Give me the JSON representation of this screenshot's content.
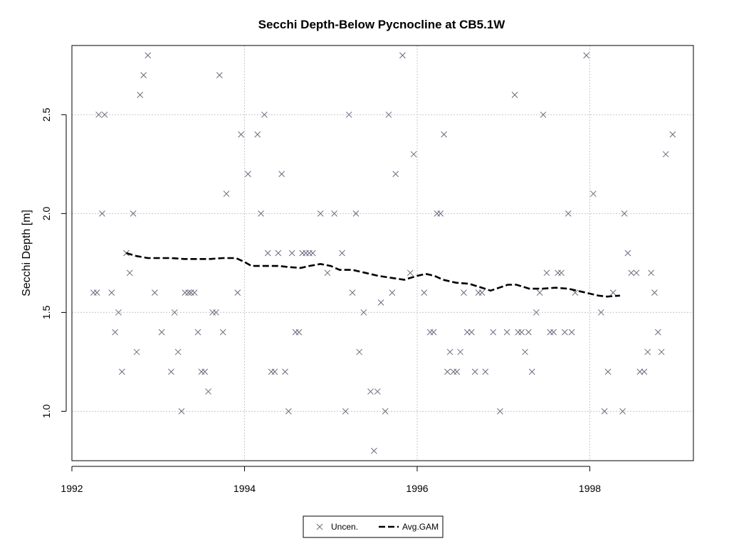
{
  "chart_data": {
    "type": "scatter",
    "title": "Secchi Depth-Below Pycnocline at CB5.1W",
    "xlabel": "",
    "ylabel": "Secchi Depth [m]",
    "xlim": [
      1992,
      1999.2
    ],
    "ylim": [
      0.75,
      2.85
    ],
    "x_ticks": [
      1992,
      1994,
      1996,
      1998
    ],
    "y_ticks": [
      1.0,
      1.5,
      2.0,
      2.5
    ],
    "y_tick_labels": [
      "1.0",
      "1.5",
      "2.0",
      "2.5"
    ],
    "grid": true,
    "legend_position": "bottom",
    "series": [
      {
        "name": "Uncen.",
        "kind": "points",
        "marker": "x",
        "color": "#6b6b80",
        "points": [
          [
            1992.25,
            1.6
          ],
          [
            1992.29,
            1.6
          ],
          [
            1992.31,
            2.5
          ],
          [
            1992.35,
            2.0
          ],
          [
            1992.38,
            2.5
          ],
          [
            1992.46,
            1.6
          ],
          [
            1992.5,
            1.4
          ],
          [
            1992.54,
            1.5
          ],
          [
            1992.58,
            1.2
          ],
          [
            1992.63,
            1.8
          ],
          [
            1992.67,
            1.7
          ],
          [
            1992.71,
            2.0
          ],
          [
            1992.75,
            1.3
          ],
          [
            1992.79,
            2.6
          ],
          [
            1992.83,
            2.7
          ],
          [
            1992.88,
            2.8
          ],
          [
            1992.96,
            1.6
          ],
          [
            1993.04,
            1.4
          ],
          [
            1993.15,
            1.2
          ],
          [
            1993.19,
            1.5
          ],
          [
            1993.23,
            1.3
          ],
          [
            1993.27,
            1.0
          ],
          [
            1993.31,
            1.6
          ],
          [
            1993.35,
            1.6
          ],
          [
            1993.38,
            1.6
          ],
          [
            1993.42,
            1.6
          ],
          [
            1993.46,
            1.4
          ],
          [
            1993.5,
            1.2
          ],
          [
            1993.54,
            1.2
          ],
          [
            1993.58,
            1.1
          ],
          [
            1993.63,
            1.5
          ],
          [
            1993.67,
            1.5
          ],
          [
            1993.71,
            2.7
          ],
          [
            1993.75,
            1.4
          ],
          [
            1993.79,
            2.1
          ],
          [
            1993.92,
            1.6
          ],
          [
            1993.96,
            2.4
          ],
          [
            1994.04,
            2.2
          ],
          [
            1994.15,
            2.4
          ],
          [
            1994.19,
            2.0
          ],
          [
            1994.23,
            2.5
          ],
          [
            1994.27,
            1.8
          ],
          [
            1994.31,
            1.2
          ],
          [
            1994.35,
            1.2
          ],
          [
            1994.39,
            1.8
          ],
          [
            1994.43,
            2.2
          ],
          [
            1994.47,
            1.2
          ],
          [
            1994.51,
            1.0
          ],
          [
            1994.55,
            1.8
          ],
          [
            1994.59,
            1.4
          ],
          [
            1994.63,
            1.4
          ],
          [
            1994.67,
            1.8
          ],
          [
            1994.71,
            1.8
          ],
          [
            1994.75,
            1.8
          ],
          [
            1994.79,
            1.8
          ],
          [
            1994.88,
            2.0
          ],
          [
            1994.96,
            1.7
          ],
          [
            1995.04,
            2.0
          ],
          [
            1995.13,
            1.8
          ],
          [
            1995.17,
            1.0
          ],
          [
            1995.21,
            2.5
          ],
          [
            1995.25,
            1.6
          ],
          [
            1995.29,
            2.0
          ],
          [
            1995.33,
            1.3
          ],
          [
            1995.38,
            1.5
          ],
          [
            1995.46,
            1.1
          ],
          [
            1995.5,
            0.8
          ],
          [
            1995.54,
            1.1
          ],
          [
            1995.58,
            1.55
          ],
          [
            1995.63,
            1.0
          ],
          [
            1995.67,
            2.5
          ],
          [
            1995.71,
            1.6
          ],
          [
            1995.75,
            2.2
          ],
          [
            1995.83,
            2.8
          ],
          [
            1995.92,
            1.7
          ],
          [
            1995.96,
            2.3
          ],
          [
            1996.08,
            1.6
          ],
          [
            1996.15,
            1.4
          ],
          [
            1996.19,
            1.4
          ],
          [
            1996.23,
            2.0
          ],
          [
            1996.27,
            2.0
          ],
          [
            1996.31,
            2.4
          ],
          [
            1996.35,
            1.2
          ],
          [
            1996.38,
            1.3
          ],
          [
            1996.42,
            1.2
          ],
          [
            1996.46,
            1.2
          ],
          [
            1996.5,
            1.3
          ],
          [
            1996.54,
            1.6
          ],
          [
            1996.58,
            1.4
          ],
          [
            1996.63,
            1.4
          ],
          [
            1996.67,
            1.2
          ],
          [
            1996.71,
            1.6
          ],
          [
            1996.75,
            1.6
          ],
          [
            1996.79,
            1.2
          ],
          [
            1996.88,
            1.4
          ],
          [
            1996.96,
            1.0
          ],
          [
            1997.04,
            1.4
          ],
          [
            1997.13,
            2.6
          ],
          [
            1997.17,
            1.4
          ],
          [
            1997.21,
            1.4
          ],
          [
            1997.25,
            1.3
          ],
          [
            1997.29,
            1.4
          ],
          [
            1997.33,
            1.2
          ],
          [
            1997.38,
            1.5
          ],
          [
            1997.42,
            1.6
          ],
          [
            1997.46,
            2.5
          ],
          [
            1997.5,
            1.7
          ],
          [
            1997.54,
            1.4
          ],
          [
            1997.58,
            1.4
          ],
          [
            1997.63,
            1.7
          ],
          [
            1997.67,
            1.7
          ],
          [
            1997.71,
            1.4
          ],
          [
            1997.75,
            2.0
          ],
          [
            1997.79,
            1.4
          ],
          [
            1997.83,
            1.6
          ],
          [
            1997.96,
            2.8
          ],
          [
            1998.04,
            2.1
          ],
          [
            1998.13,
            1.5
          ],
          [
            1998.17,
            1.0
          ],
          [
            1998.21,
            1.2
          ],
          [
            1998.27,
            1.6
          ],
          [
            1998.38,
            1.0
          ],
          [
            1998.4,
            2.0
          ],
          [
            1998.44,
            1.8
          ],
          [
            1998.48,
            1.7
          ],
          [
            1998.54,
            1.7
          ],
          [
            1998.58,
            1.2
          ],
          [
            1998.63,
            1.2
          ],
          [
            1998.67,
            1.3
          ],
          [
            1998.71,
            1.7
          ],
          [
            1998.75,
            1.6
          ],
          [
            1998.79,
            1.4
          ],
          [
            1998.83,
            1.3
          ],
          [
            1998.88,
            2.3
          ],
          [
            1998.96,
            2.4
          ]
        ]
      },
      {
        "name": "Avg.GAM",
        "kind": "line",
        "line_style": "dashed",
        "color": "#000000",
        "points": [
          [
            1992.63,
            1.8
          ],
          [
            1992.75,
            1.785
          ],
          [
            1992.88,
            1.775
          ],
          [
            1993.0,
            1.775
          ],
          [
            1993.15,
            1.775
          ],
          [
            1993.3,
            1.77
          ],
          [
            1993.45,
            1.77
          ],
          [
            1993.6,
            1.77
          ],
          [
            1993.75,
            1.775
          ],
          [
            1993.9,
            1.775
          ],
          [
            1994.0,
            1.755
          ],
          [
            1994.08,
            1.735
          ],
          [
            1994.25,
            1.735
          ],
          [
            1994.4,
            1.735
          ],
          [
            1994.5,
            1.73
          ],
          [
            1994.65,
            1.725
          ],
          [
            1994.75,
            1.735
          ],
          [
            1994.88,
            1.745
          ],
          [
            1995.0,
            1.735
          ],
          [
            1995.1,
            1.715
          ],
          [
            1995.25,
            1.715
          ],
          [
            1995.4,
            1.7
          ],
          [
            1995.55,
            1.685
          ],
          [
            1995.7,
            1.675
          ],
          [
            1995.85,
            1.665
          ],
          [
            1996.0,
            1.685
          ],
          [
            1996.1,
            1.695
          ],
          [
            1996.2,
            1.685
          ],
          [
            1996.3,
            1.665
          ],
          [
            1996.45,
            1.65
          ],
          [
            1996.6,
            1.645
          ],
          [
            1996.75,
            1.625
          ],
          [
            1996.85,
            1.61
          ],
          [
            1996.95,
            1.625
          ],
          [
            1997.05,
            1.64
          ],
          [
            1997.15,
            1.64
          ],
          [
            1997.3,
            1.62
          ],
          [
            1997.45,
            1.62
          ],
          [
            1997.6,
            1.625
          ],
          [
            1997.75,
            1.62
          ],
          [
            1997.9,
            1.605
          ],
          [
            1998.0,
            1.595
          ],
          [
            1998.1,
            1.585
          ],
          [
            1998.2,
            1.58
          ],
          [
            1998.35,
            1.585
          ]
        ]
      }
    ]
  }
}
